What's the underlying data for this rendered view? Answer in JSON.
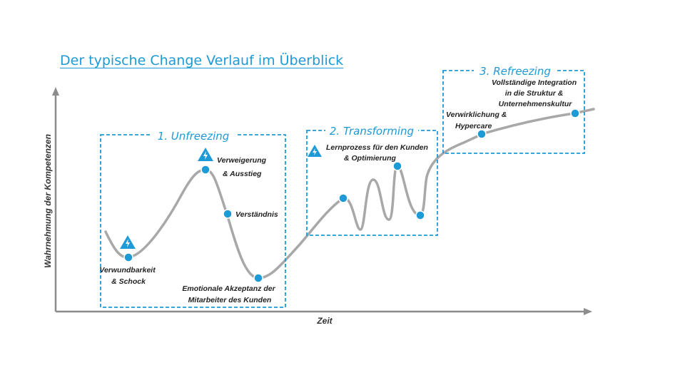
{
  "title": "Der typische Change Verlauf im Überblick",
  "axes": {
    "x_label": "Zeit",
    "y_label": "Wahrnehmung der Kompetenzen"
  },
  "phases": [
    {
      "label": "1. Unfreezing"
    },
    {
      "label": "2. Transforming"
    },
    {
      "label": "3. Refreezing"
    }
  ],
  "milestones": [
    {
      "lines": [
        "Verwundbarkeit",
        "& Schock"
      ],
      "warning": true
    },
    {
      "lines": [
        "Verweigerung",
        "& Ausstieg"
      ],
      "warning": true
    },
    {
      "lines": [
        "Verständnis"
      ],
      "warning": false
    },
    {
      "lines": [
        "Emotionale Akzeptanz der",
        "Mitarbeiter des Kunden"
      ],
      "warning": false
    },
    {
      "lines": [
        "Lernprozess für den Kunden",
        "& Optimierung"
      ],
      "warning": true
    },
    {
      "lines": [
        "Verwirklichung &",
        "Hypercare"
      ],
      "warning": false
    },
    {
      "lines": [
        "Vollständige Integration",
        "in die Struktur &",
        "Unternehmenskultur"
      ],
      "warning": false
    }
  ],
  "colors": {
    "accent": "#1e9ad6",
    "curve": "#a8a8a8",
    "axis": "#8c8c8c",
    "text": "#222222"
  },
  "icons": {
    "warning": "warning-triangle-icon"
  }
}
